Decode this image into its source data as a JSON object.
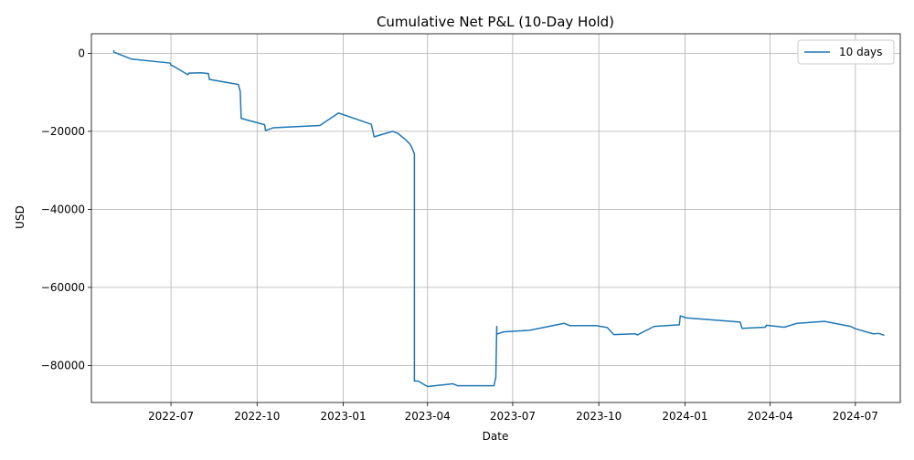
{
  "chart_data": {
    "type": "line",
    "title": "Cumulative Net P&L (10-Day Hold)",
    "xlabel": "Date",
    "ylabel": "USD",
    "xlim": [
      "2022-04-07",
      "2024-08-18"
    ],
    "ylim": [
      -89500,
      5000
    ],
    "grid": true,
    "legend_position": "top-right",
    "x_ticks": [
      "2022-07",
      "2022-10",
      "2023-01",
      "2023-04",
      "2023-07",
      "2023-10",
      "2024-01",
      "2024-04",
      "2024-07"
    ],
    "y_ticks": [
      0,
      -20000,
      -40000,
      -60000,
      -80000
    ],
    "y_tick_labels": [
      "0",
      "−20000",
      "−40000",
      "−60000",
      "−80000"
    ],
    "series": [
      {
        "name": "10 days",
        "color": "#1f77b4",
        "points": [
          [
            "2022-05-01",
            800
          ],
          [
            "2022-05-01",
            300
          ],
          [
            "2022-05-20",
            -1500
          ],
          [
            "2022-06-30",
            -2500
          ],
          [
            "2022-07-01",
            -3000
          ],
          [
            "2022-07-05",
            -3500
          ],
          [
            "2022-07-17",
            -5200
          ],
          [
            "2022-07-19",
            -5500
          ],
          [
            "2022-07-20",
            -5100
          ],
          [
            "2022-08-02",
            -5000
          ],
          [
            "2022-08-10",
            -5200
          ],
          [
            "2022-08-11",
            -6700
          ],
          [
            "2022-09-11",
            -8000
          ],
          [
            "2022-09-13",
            -9800
          ],
          [
            "2022-09-14",
            -16700
          ],
          [
            "2022-10-09",
            -18300
          ],
          [
            "2022-10-10",
            -19800
          ],
          [
            "2022-10-18",
            -19100
          ],
          [
            "2022-12-07",
            -18500
          ],
          [
            "2022-12-27",
            -15300
          ],
          [
            "2023-01-31",
            -18200
          ],
          [
            "2023-02-03",
            -21400
          ],
          [
            "2023-02-23",
            -20000
          ],
          [
            "2023-02-28",
            -20500
          ],
          [
            "2023-03-08",
            -22000
          ],
          [
            "2023-03-13",
            -23200
          ],
          [
            "2023-03-15",
            -24000
          ],
          [
            "2023-03-18",
            -25800
          ],
          [
            "2023-03-18",
            -84000
          ],
          [
            "2023-03-22",
            -84000
          ],
          [
            "2023-04-01",
            -85400
          ],
          [
            "2023-04-28",
            -84700
          ],
          [
            "2023-05-03",
            -85200
          ],
          [
            "2023-06-11",
            -85200
          ],
          [
            "2023-06-13",
            -83000
          ],
          [
            "2023-06-13",
            -82500
          ],
          [
            "2023-06-14",
            -70000
          ],
          [
            "2023-06-14",
            -72000
          ],
          [
            "2023-06-21",
            -71400
          ],
          [
            "2023-07-19",
            -71000
          ],
          [
            "2023-08-25",
            -69200
          ],
          [
            "2023-08-31",
            -69800
          ],
          [
            "2023-09-28",
            -69800
          ],
          [
            "2023-10-10",
            -70300
          ],
          [
            "2023-10-17",
            -72100
          ],
          [
            "2023-11-09",
            -71900
          ],
          [
            "2023-11-11",
            -72200
          ],
          [
            "2023-11-29",
            -70000
          ],
          [
            "2023-12-26",
            -69600
          ],
          [
            "2023-12-27",
            -67300
          ],
          [
            "2024-01-02",
            -67800
          ],
          [
            "2024-02-29",
            -68900
          ],
          [
            "2024-03-02",
            -70500
          ],
          [
            "2024-03-27",
            -70200
          ],
          [
            "2024-03-28",
            -69700
          ],
          [
            "2024-04-16",
            -70200
          ],
          [
            "2024-04-30",
            -69200
          ],
          [
            "2024-05-29",
            -68700
          ],
          [
            "2024-06-26",
            -70000
          ],
          [
            "2024-07-01",
            -70600
          ],
          [
            "2024-07-20",
            -71900
          ],
          [
            "2024-07-26",
            -71800
          ],
          [
            "2024-08-01",
            -72300
          ]
        ]
      }
    ]
  }
}
